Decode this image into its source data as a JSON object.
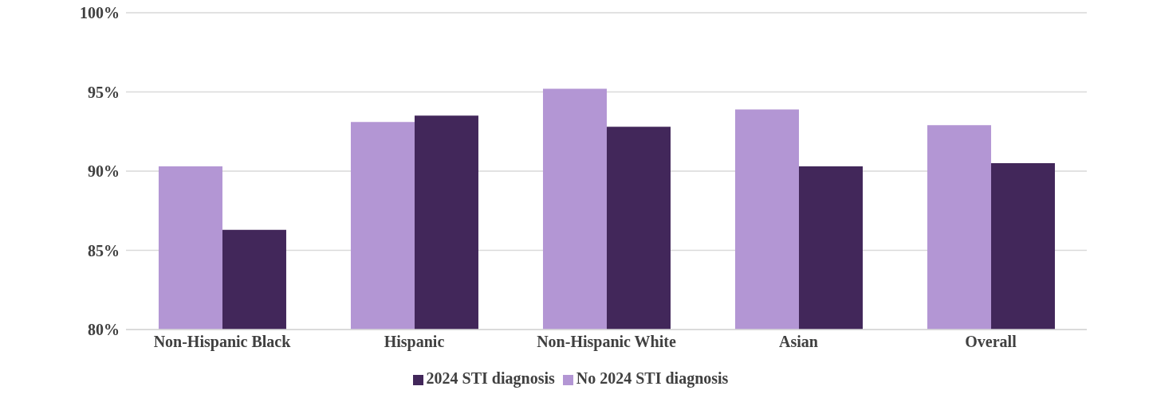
{
  "chart_data": {
    "type": "bar",
    "categories": [
      "Non-Hispanic Black",
      "Hispanic",
      "Non-Hispanic White",
      "Asian",
      "Overall"
    ],
    "series": [
      {
        "name": "No 2024 STI diagnosis",
        "color": "#b396d4",
        "values": [
          90.3,
          93.1,
          95.2,
          93.9,
          92.9
        ]
      },
      {
        "name": "2024 STI diagnosis",
        "color": "#42275a",
        "values": [
          86.3,
          93.5,
          92.8,
          90.3,
          90.5
        ]
      }
    ],
    "ylim": [
      80,
      100
    ],
    "yticks": [
      {
        "value": 80,
        "label": "80%"
      },
      {
        "value": 85,
        "label": "85%"
      },
      {
        "value": 90,
        "label": "90%"
      },
      {
        "value": 95,
        "label": "95%"
      },
      {
        "value": 100,
        "label": "100%"
      }
    ],
    "grid": "y",
    "legend": "bottom"
  }
}
